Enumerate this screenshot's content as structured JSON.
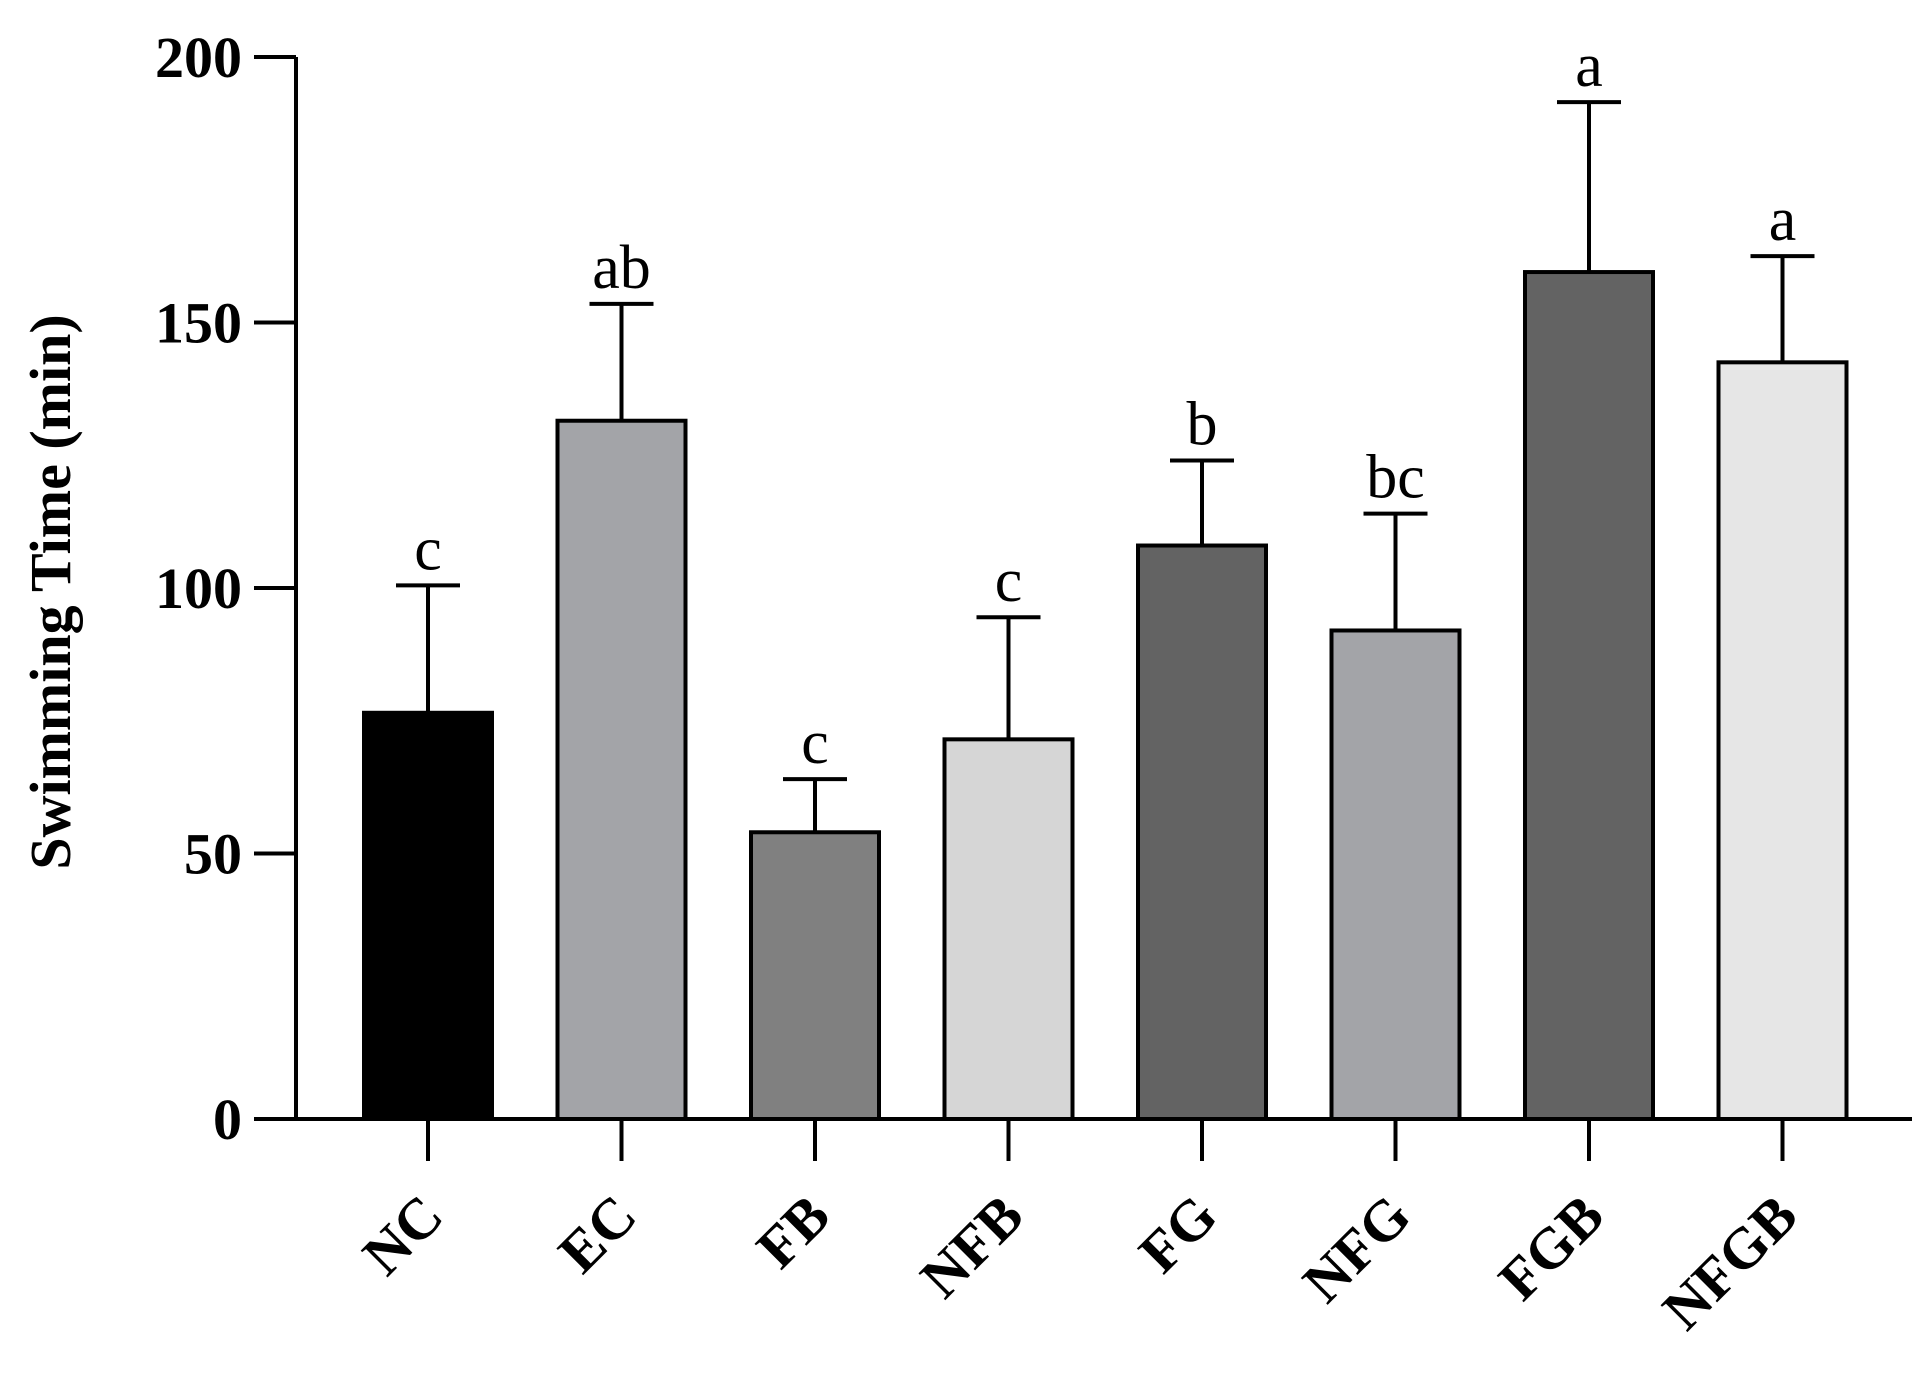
{
  "chart_data": {
    "type": "bar",
    "title": "",
    "xlabel": "",
    "ylabel": "Swimming Time (min)",
    "ylim": [
      0,
      200
    ],
    "yticks": [
      "0",
      "50",
      "100",
      "150",
      "200"
    ],
    "ytick_values": [
      0,
      50,
      100,
      150,
      200
    ],
    "grid": false,
    "legend": "none",
    "categories": [
      "NC",
      "EC",
      "FB",
      "NFB",
      "FG",
      "NFG",
      "FGB",
      "NFGB"
    ],
    "values": [
      76.5,
      131.5,
      54,
      71.5,
      108,
      92,
      159.5,
      142.5
    ],
    "errors": [
      24,
      22,
      10,
      23,
      16,
      22,
      32,
      20
    ],
    "significance": [
      "c",
      "ab",
      "c",
      "c",
      "b",
      "bc",
      "a",
      "a"
    ],
    "colors": [
      "#000000",
      "#a3a4a8",
      "#808080",
      "#d6d6d6",
      "#636363",
      "#a3a4a8",
      "#636363",
      "#e6e6e6"
    ]
  }
}
